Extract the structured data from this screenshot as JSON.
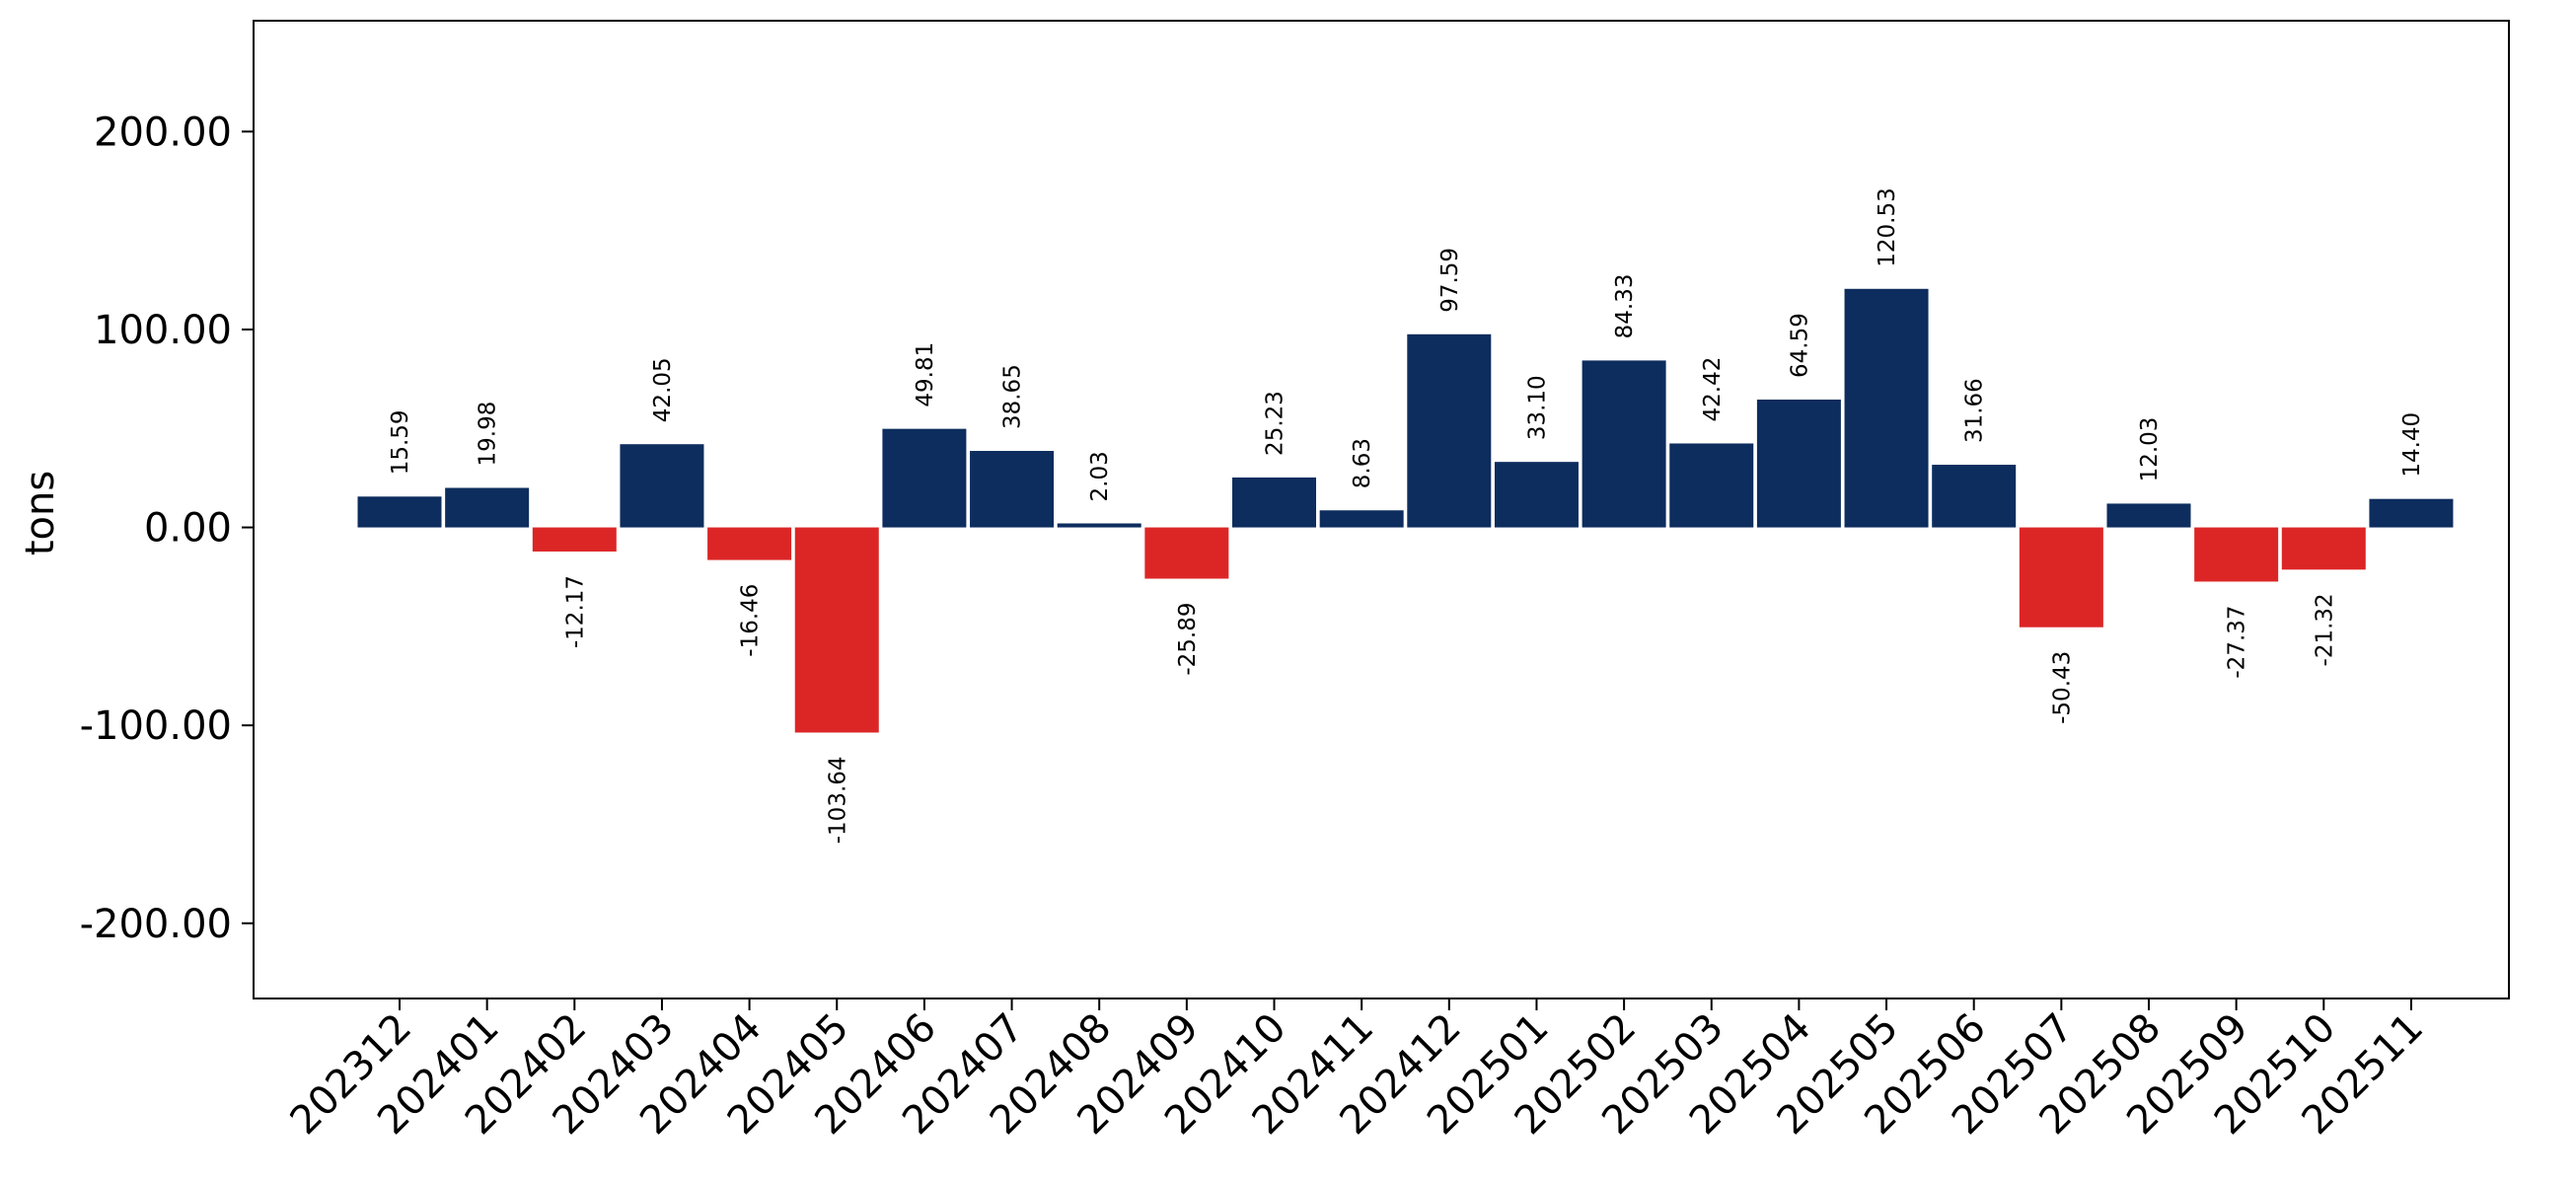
{
  "chart_data": {
    "type": "bar",
    "title": "",
    "xlabel": "",
    "ylabel": "tons",
    "ylim": [
      -238,
      256
    ],
    "yticks": [
      200,
      100,
      0,
      -100,
      -200
    ],
    "ytick_labels": [
      "200.00",
      "100.00",
      "0.00",
      "-100.00",
      "-200.00"
    ],
    "grid": false,
    "legend": "none",
    "colors": {
      "positive": "#0d2d5e",
      "negative": "#dc2626"
    },
    "categories": [
      "202312",
      "202401",
      "202402",
      "202403",
      "202404",
      "202405",
      "202406",
      "202407",
      "202408",
      "202409",
      "202410",
      "202411",
      "202412",
      "202501",
      "202502",
      "202503",
      "202504",
      "202505",
      "202506",
      "202507",
      "202508",
      "202509",
      "202510",
      "202511"
    ],
    "values": [
      15.59,
      19.98,
      -12.17,
      42.05,
      -16.46,
      -103.64,
      49.81,
      38.65,
      2.03,
      -25.89,
      25.23,
      8.63,
      97.59,
      33.1,
      84.33,
      42.42,
      64.59,
      120.53,
      31.66,
      -50.43,
      12.03,
      -27.37,
      -21.32,
      14.4
    ],
    "value_labels": [
      "15.59",
      "19.98",
      "-12.17",
      "42.05",
      "-16.46",
      "-103.64",
      "49.81",
      "38.65",
      "2.03",
      "-25.89",
      "25.23",
      "8.63",
      "97.59",
      "33.10",
      "84.33",
      "42.42",
      "64.59",
      "120.53",
      "31.66",
      "-50.43",
      "12.03",
      "-27.37",
      "-21.32",
      "14.40"
    ]
  }
}
